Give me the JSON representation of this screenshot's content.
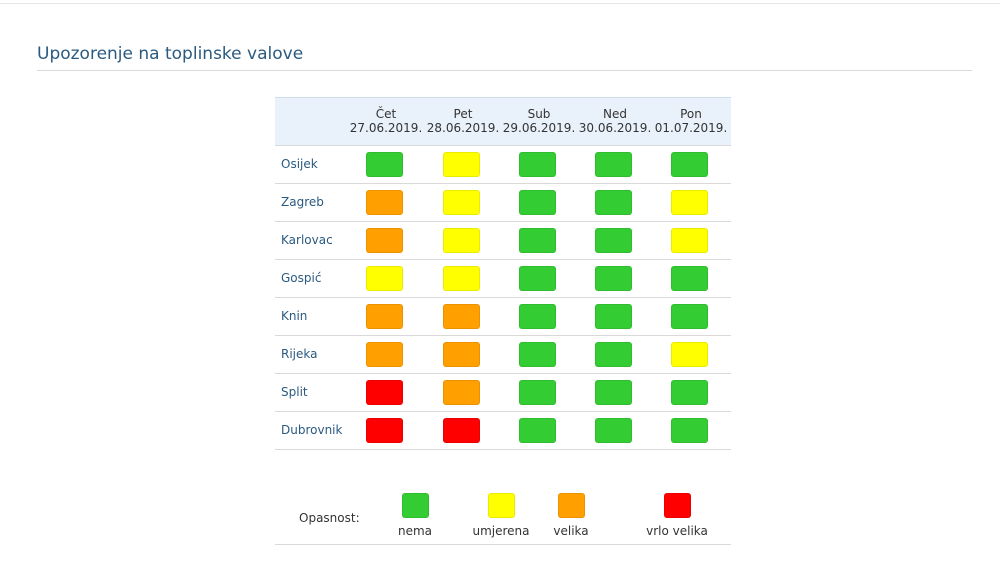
{
  "page": {
    "title": "Upozorenje na toplinske valove"
  },
  "colors": {
    "nema": "#33cc33",
    "umjerena": "#ffff00",
    "velika": "#ff9f00",
    "vrlo_velika": "#ff0000"
  },
  "table": {
    "columns": [
      {
        "day": "Čet",
        "date": "27.06.2019."
      },
      {
        "day": "Pet",
        "date": "28.06.2019."
      },
      {
        "day": "Sub",
        "date": "29.06.2019."
      },
      {
        "day": "Ned",
        "date": "30.06.2019."
      },
      {
        "day": "Pon",
        "date": "01.07.2019."
      }
    ],
    "rows": [
      {
        "city": "Osijek",
        "levels": [
          "nema",
          "umjerena",
          "nema",
          "nema",
          "nema"
        ]
      },
      {
        "city": "Zagreb",
        "levels": [
          "velika",
          "umjerena",
          "nema",
          "nema",
          "umjerena"
        ]
      },
      {
        "city": "Karlovac",
        "levels": [
          "velika",
          "umjerena",
          "nema",
          "nema",
          "umjerena"
        ]
      },
      {
        "city": "Gospić",
        "levels": [
          "umjerena",
          "umjerena",
          "nema",
          "nema",
          "nema"
        ]
      },
      {
        "city": "Knin",
        "levels": [
          "velika",
          "velika",
          "nema",
          "nema",
          "nema"
        ]
      },
      {
        "city": "Rijeka",
        "levels": [
          "velika",
          "velika",
          "nema",
          "nema",
          "umjerena"
        ]
      },
      {
        "city": "Split",
        "levels": [
          "vrlo_velika",
          "velika",
          "nema",
          "nema",
          "nema"
        ]
      },
      {
        "city": "Dubrovnik",
        "levels": [
          "vrlo_velika",
          "vrlo_velika",
          "nema",
          "nema",
          "nema"
        ]
      }
    ]
  },
  "legend": {
    "label": "Opasnost:",
    "items": [
      {
        "key": "nema",
        "text": "nema"
      },
      {
        "key": "umjerena",
        "text": "umjerena"
      },
      {
        "key": "velika",
        "text": "velika"
      },
      {
        "key": "vrlo_velika",
        "text": "vrlo velika"
      }
    ]
  }
}
